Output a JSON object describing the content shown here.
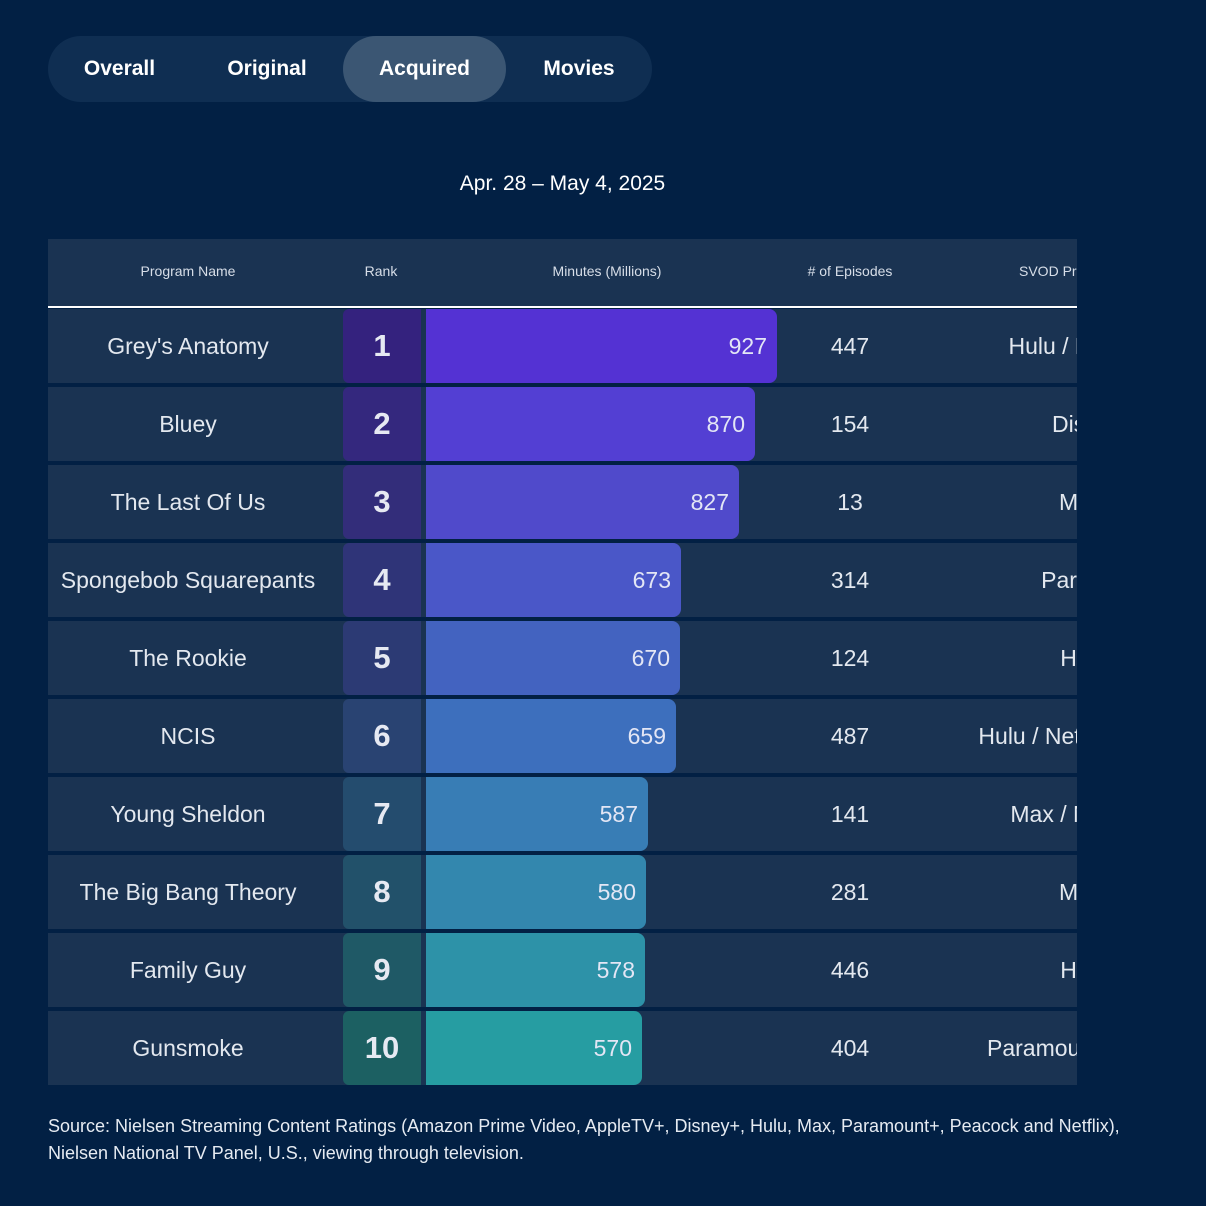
{
  "tabs": [
    {
      "label": "Overall",
      "active": false
    },
    {
      "label": "Original",
      "active": false
    },
    {
      "label": "Acquired",
      "active": true
    },
    {
      "label": "Movies",
      "active": false
    }
  ],
  "date_range": "Apr. 28 – May 4, 2025",
  "table": {
    "headers": {
      "program": "Program Name",
      "rank": "Rank",
      "minutes": "Minutes (Millions)",
      "episodes": "# of Episodes",
      "svod": "SVOD Pr"
    }
  },
  "chart_data": {
    "type": "bar",
    "orientation": "horizontal",
    "title": "Apr. 28 – May 4, 2025",
    "value_label": "Minutes (Millions)",
    "categories": [
      "Grey's Anatomy",
      "Bluey",
      "The Last Of Us",
      "Spongebob Squarepants",
      "The Rookie",
      "NCIS",
      "Young Sheldon",
      "The Big Bang Theory",
      "Family Guy",
      "Gunsmoke"
    ],
    "values": [
      927,
      870,
      827,
      673,
      670,
      659,
      587,
      580,
      578,
      570
    ],
    "rows": [
      {
        "rank": "1",
        "name": "Grey's Anatomy",
        "minutes": 927,
        "episodes": "447",
        "svod": "Hulu / N",
        "bar_color": "#5432d3",
        "rank_color": "#34227e"
      },
      {
        "rank": "2",
        "name": "Bluey",
        "minutes": 870,
        "episodes": "154",
        "svod": "Disn",
        "bar_color": "#533fd3",
        "rank_color": "#34287e"
      },
      {
        "rank": "3",
        "name": "The Last Of Us",
        "minutes": 827,
        "episodes": "13",
        "svod": "Ma",
        "bar_color": "#504acb",
        "rank_color": "#332d7a"
      },
      {
        "rank": "4",
        "name": "Spongebob Squarepants",
        "minutes": 673,
        "episodes": "314",
        "svod": "Param",
        "bar_color": "#4a57c8",
        "rank_color": "#2f3478"
      },
      {
        "rank": "5",
        "name": "The Rookie",
        "minutes": 670,
        "episodes": "124",
        "svod": "Hu",
        "bar_color": "#4363c0",
        "rank_color": "#2c3a74"
      },
      {
        "rank": "6",
        "name": "NCIS",
        "minutes": 659,
        "episodes": "487",
        "svod": "Hulu / Netflix /",
        "bar_color": "#3d6fbd",
        "rank_color": "#294372"
      },
      {
        "rank": "7",
        "name": "Young Sheldon",
        "minutes": 587,
        "episodes": "141",
        "svod": "Max / N",
        "bar_color": "#387db5",
        "rank_color": "#244c6e"
      },
      {
        "rank": "8",
        "name": "The Big Bang Theory",
        "minutes": 580,
        "episodes": "281",
        "svod": "Ma",
        "bar_color": "#3387ae",
        "rank_color": "#22516a"
      },
      {
        "rank": "9",
        "name": "Family Guy",
        "minutes": 578,
        "episodes": "446",
        "svod": "Hu",
        "bar_color": "#2d92a8",
        "rank_color": "#1f5966"
      },
      {
        "rank": "10",
        "name": "Gunsmoke",
        "minutes": 570,
        "episodes": "404",
        "svod": "Paramount+",
        "bar_color": "#269da2",
        "rank_color": "#1c6062"
      }
    ],
    "xlim": [
      0,
      927
    ]
  },
  "source": "Source: Nielsen Streaming Content Ratings (Amazon Prime Video, AppleTV+, Disney+, Hulu, Max, Paramount+, Peacock and Netflix), Nielsen National TV Panel, U.S., viewing through television."
}
